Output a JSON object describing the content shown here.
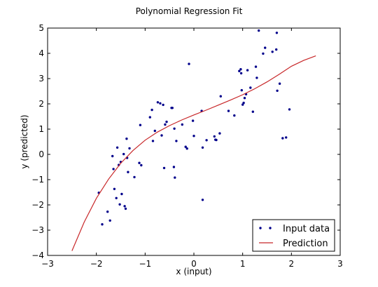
{
  "chart_data": {
    "type": "scatter",
    "title": "Polynomial Regression Fit",
    "xlabel": "x (input)",
    "ylabel": "y (predicted)",
    "xlim": [
      -3,
      3
    ],
    "ylim": [
      -4,
      5
    ],
    "xticks": [
      -3,
      -2,
      -1,
      0,
      1,
      2,
      3
    ],
    "yticks": [
      -4,
      -3,
      -2,
      -1,
      0,
      1,
      2,
      3,
      4,
      5
    ],
    "xtick_labels": [
      "−3",
      "−2",
      "−1",
      "0",
      "1",
      "2",
      "3"
    ],
    "ytick_labels": [
      "−4",
      "−3",
      "−2",
      "−1",
      "0",
      "1",
      "2",
      "3",
      "4",
      "5"
    ],
    "grid": false,
    "legend_position": "bottom-right",
    "series": [
      {
        "name": "Input data",
        "kind": "scatter",
        "color": "#00008b",
        "points": [
          [
            -1.95,
            -1.52
          ],
          [
            -1.88,
            -2.77
          ],
          [
            -1.77,
            -2.27
          ],
          [
            -1.72,
            -2.62
          ],
          [
            -1.67,
            -0.07
          ],
          [
            -1.65,
            -0.58
          ],
          [
            -1.63,
            -1.37
          ],
          [
            -1.59,
            -1.73
          ],
          [
            -1.57,
            0.27
          ],
          [
            -1.54,
            -0.42
          ],
          [
            -1.52,
            -1.98
          ],
          [
            -1.5,
            -0.3
          ],
          [
            -1.48,
            -1.57
          ],
          [
            -1.44,
            0.01
          ],
          [
            -1.42,
            -2.05
          ],
          [
            -1.4,
            -2.15
          ],
          [
            -1.38,
            0.62
          ],
          [
            -1.37,
            -0.14
          ],
          [
            -1.35,
            -0.7
          ],
          [
            -1.32,
            0.24
          ],
          [
            -1.22,
            -0.9
          ],
          [
            -1.12,
            -0.34
          ],
          [
            -1.1,
            1.16
          ],
          [
            -1.08,
            -0.43
          ],
          [
            -0.9,
            1.47
          ],
          [
            -0.86,
            1.76
          ],
          [
            -0.84,
            0.53
          ],
          [
            -0.8,
            0.93
          ],
          [
            -0.74,
            2.06
          ],
          [
            -0.69,
            2.02
          ],
          [
            -0.66,
            0.75
          ],
          [
            -0.63,
            1.96
          ],
          [
            -0.61,
            -0.54
          ],
          [
            -0.59,
            1.18
          ],
          [
            -0.56,
            1.29
          ],
          [
            -0.46,
            1.84
          ],
          [
            -0.44,
            1.84
          ],
          [
            -0.41,
            -0.5
          ],
          [
            -0.4,
            1.02
          ],
          [
            -0.39,
            -0.92
          ],
          [
            -0.36,
            0.53
          ],
          [
            -0.24,
            1.18
          ],
          [
            -0.17,
            0.3
          ],
          [
            -0.14,
            0.23
          ],
          [
            -0.1,
            3.58
          ],
          [
            -0.02,
            1.33
          ],
          [
            0.0,
            0.73
          ],
          [
            0.16,
            1.72
          ],
          [
            0.18,
            0.27
          ],
          [
            0.18,
            -1.8
          ],
          [
            0.26,
            0.56
          ],
          [
            0.42,
            0.71
          ],
          [
            0.44,
            0.58
          ],
          [
            0.46,
            0.57
          ],
          [
            0.53,
            0.83
          ],
          [
            0.55,
            2.3
          ],
          [
            0.71,
            1.72
          ],
          [
            0.83,
            1.54
          ],
          [
            0.93,
            3.3
          ],
          [
            0.96,
            3.37
          ],
          [
            0.97,
            3.21
          ],
          [
            0.98,
            2.54
          ],
          [
            1.0,
            1.97
          ],
          [
            1.02,
            2.04
          ],
          [
            1.04,
            2.23
          ],
          [
            1.07,
            2.38
          ],
          [
            1.1,
            3.33
          ],
          [
            1.16,
            2.64
          ],
          [
            1.21,
            1.69
          ],
          [
            1.27,
            3.47
          ],
          [
            1.29,
            3.03
          ],
          [
            1.33,
            4.9
          ],
          [
            1.42,
            3.99
          ],
          [
            1.46,
            4.22
          ],
          [
            1.61,
            4.06
          ],
          [
            1.69,
            4.15
          ],
          [
            1.7,
            4.81
          ],
          [
            1.71,
            2.52
          ],
          [
            1.76,
            2.8
          ],
          [
            1.82,
            0.64
          ],
          [
            1.89,
            0.67
          ],
          [
            1.96,
            1.78
          ]
        ]
      },
      {
        "name": "Prediction",
        "kind": "line",
        "color": "#c8282a",
        "points": [
          [
            -2.5,
            -3.82
          ],
          [
            -2.25,
            -2.68
          ],
          [
            -2.0,
            -1.74
          ],
          [
            -1.75,
            -0.98
          ],
          [
            -1.5,
            -0.35
          ],
          [
            -1.25,
            0.15
          ],
          [
            -1.0,
            0.56
          ],
          [
            -0.75,
            0.88
          ],
          [
            -0.5,
            1.14
          ],
          [
            -0.25,
            1.36
          ],
          [
            0.0,
            1.56
          ],
          [
            0.25,
            1.75
          ],
          [
            0.5,
            1.95
          ],
          [
            0.75,
            2.15
          ],
          [
            1.0,
            2.36
          ],
          [
            1.25,
            2.6
          ],
          [
            1.5,
            2.87
          ],
          [
            1.75,
            3.17
          ],
          [
            2.0,
            3.49
          ],
          [
            2.25,
            3.72
          ],
          [
            2.5,
            3.9
          ]
        ]
      }
    ]
  }
}
